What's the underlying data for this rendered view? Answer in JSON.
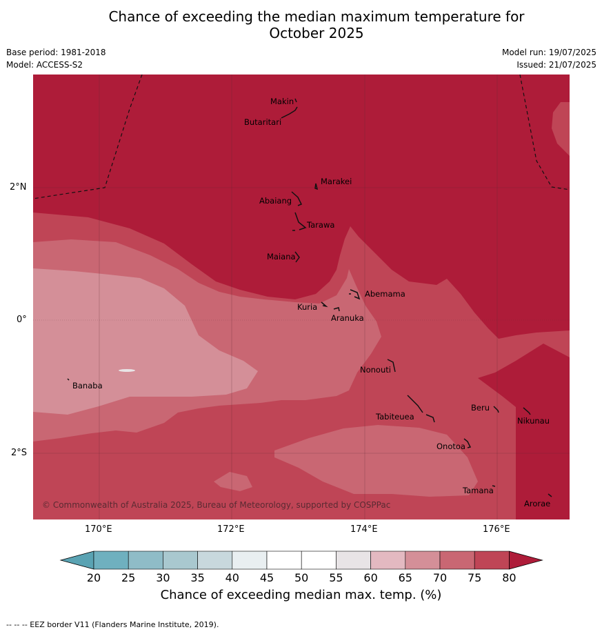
{
  "title_line1": "Chance of exceeding the median maximum temperature for",
  "title_line2": "October 2025",
  "base_period": "Base period: 1981-2018",
  "model": "Model: ACCESS-S2",
  "model_run": "Model run: 19/07/2025",
  "issued": "Issued: 21/07/2025",
  "lat_labels": [
    "2°N",
    "0°",
    "2°S"
  ],
  "lon_labels": [
    "170°E",
    "172°E",
    "174°E",
    "176°E"
  ],
  "places": {
    "makin": "Makin",
    "butaritari": "Butaritari",
    "marakei": "Marakei",
    "abaiang": "Abaiang",
    "tarawa": "Tarawa",
    "maiana": "Maiana",
    "abemama": "Abemama",
    "kuria": "Kuria",
    "aranuka": "Aranuka",
    "banaba": "Banaba",
    "nonouti": "Nonouti",
    "tabiteuea": "Tabiteuea",
    "beru": "Beru",
    "nikunau": "Nikunau",
    "onotoa": "Onotoa",
    "tamana": "Tamana",
    "arorae": "Arorae"
  },
  "copyright": "© Commonwealth of Australia 2025, Bureau of Meteorology, supported by COSPPac",
  "colorbar": {
    "ticks": [
      "20",
      "25",
      "30",
      "35",
      "40",
      "45",
      "50",
      "55",
      "60",
      "65",
      "70",
      "75",
      "80"
    ],
    "title": "Chance of exceeding median max. temp. (%)",
    "colors": [
      "#5aa3b3",
      "#6fb0bf",
      "#8fbcc7",
      "#a9c8cf",
      "#c8d8dd",
      "#e9eff1",
      "#ffffff",
      "#ffffff",
      "#e8e4e6",
      "#e3b9c1",
      "#d48f98",
      "#c96773",
      "#bf4556",
      "#ae1c39"
    ]
  },
  "map_colors": {
    "c60": "#d48f98",
    "c65": "#d48f98",
    "c70": "#c96773",
    "c75": "#bf4556",
    "c80": "#ae1c39"
  },
  "footer": "-- -- -- EEZ border V11 (Flanders Marine Institute, 2019)."
}
